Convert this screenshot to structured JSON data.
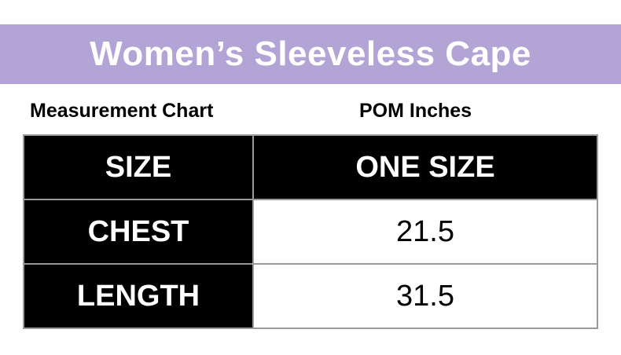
{
  "title": "Women’s Sleeveless Cape",
  "labels": {
    "left": "Measurement Chart",
    "right": "POM Inches"
  },
  "table": {
    "header": {
      "label": "SIZE",
      "value": "ONE SIZE"
    },
    "rows": [
      {
        "label": "CHEST",
        "value": "21.5"
      },
      {
        "label": "LENGTH",
        "value": "31.5"
      }
    ]
  },
  "colors": {
    "banner": "#b2a4d4",
    "header_bg": "#000000",
    "header_text": "#ffffff",
    "cell_bg": "#ffffff",
    "border": "#9a9a9a"
  }
}
